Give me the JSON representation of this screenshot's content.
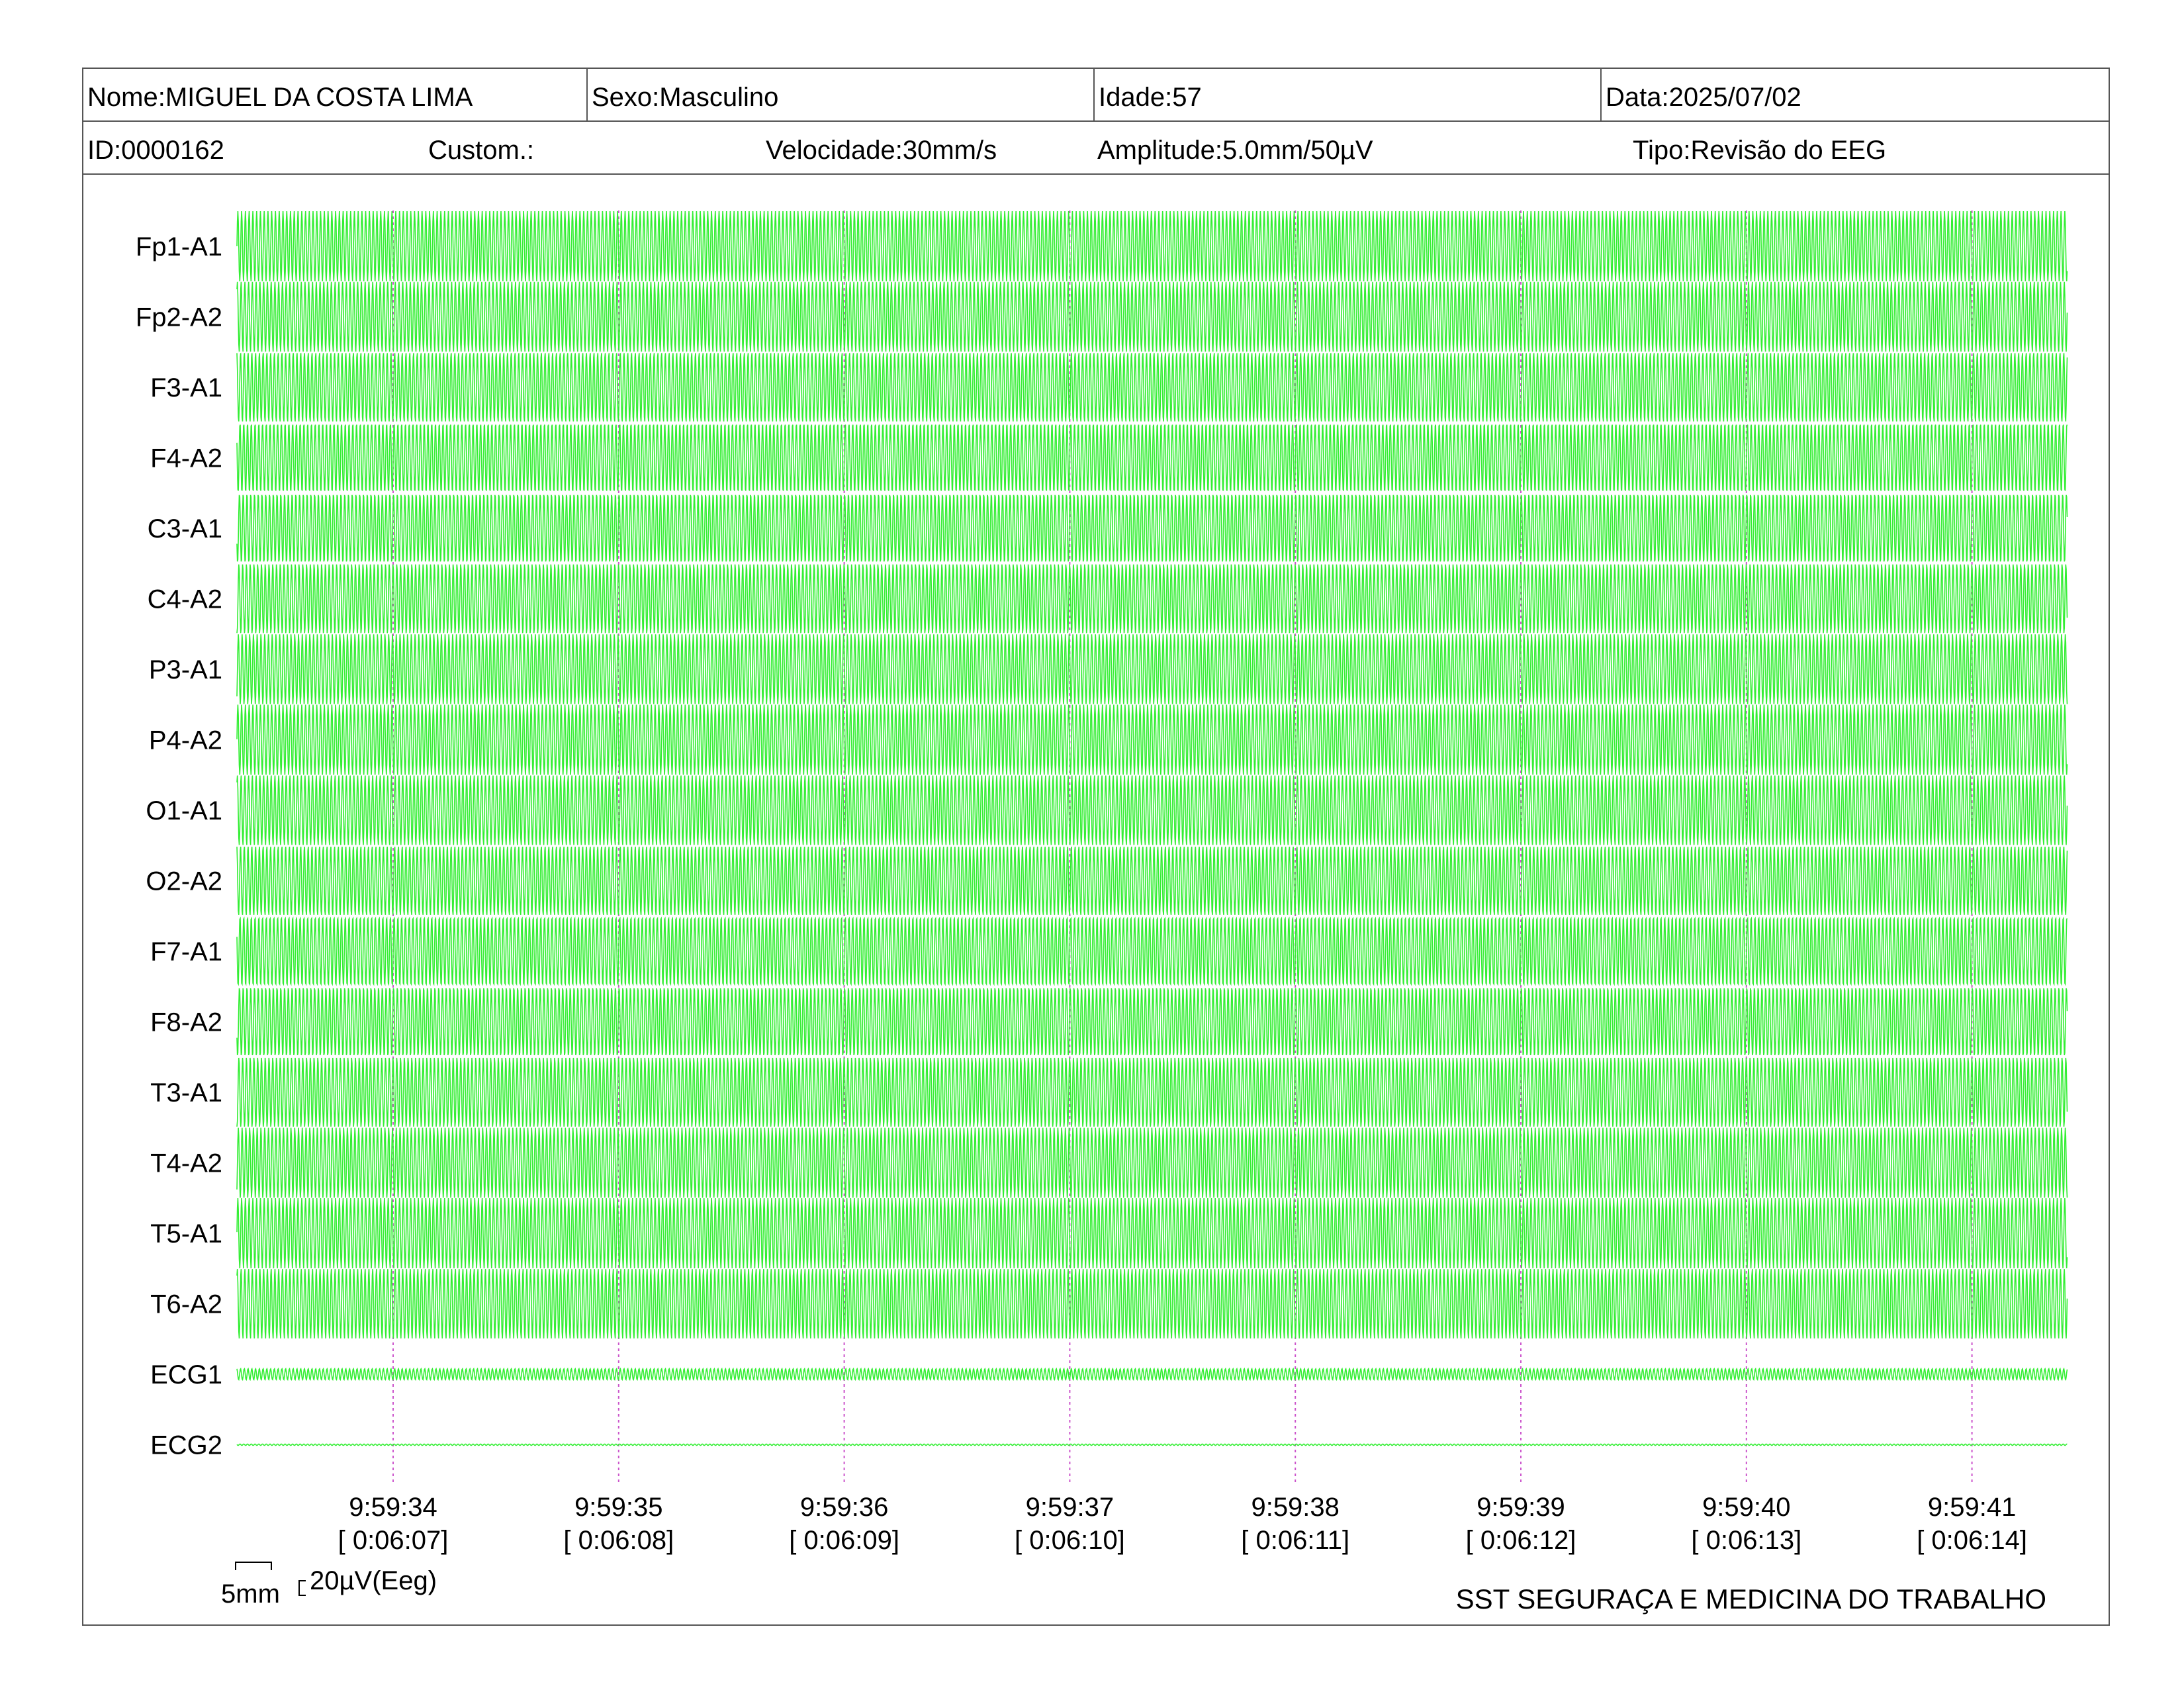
{
  "header": {
    "name": "Nome:MIGUEL DA COSTA LIMA",
    "sex": "Sexo:Masculino",
    "age": "Idade:57",
    "date": "Data:2025/07/02",
    "id": "ID:0000162",
    "custom": "Custom.:",
    "speed": "Velocidade:30mm/s",
    "amplitude": "Amplitude:5.0mm/50µV",
    "type": "Tipo:Revisão do EEG"
  },
  "scale": {
    "time_label": "5mm",
    "amp_label": "20µV(Eeg)"
  },
  "footer": {
    "organization": "SST SEGURAÇA E MEDICINA DO TRABALHO"
  },
  "colors": {
    "trace": "#33ee33",
    "marker": "#cc55cc",
    "border": "#555555"
  },
  "chart_data": {
    "type": "line",
    "title": "",
    "xlabel": "",
    "ylabel": "",
    "channels": [
      "Fp1-A1",
      "Fp2-A2",
      "F3-A1",
      "F4-A2",
      "C3-A1",
      "C4-A2",
      "P3-A1",
      "P4-A2",
      "O1-A1",
      "O2-A2",
      "F7-A1",
      "F8-A2",
      "T3-A1",
      "T4-A2",
      "T5-A1",
      "T6-A2",
      "ECG1",
      "ECG2"
    ],
    "time_ticks": [
      {
        "clock": "9:59:34",
        "elapsed": "[ 0:06:07]"
      },
      {
        "clock": "9:59:35",
        "elapsed": "[ 0:06:08]"
      },
      {
        "clock": "9:59:36",
        "elapsed": "[ 0:06:09]"
      },
      {
        "clock": "9:59:37",
        "elapsed": "[ 0:06:10]"
      },
      {
        "clock": "9:59:38",
        "elapsed": "[ 0:06:11]"
      },
      {
        "clock": "9:59:39",
        "elapsed": "[ 0:06:12]"
      },
      {
        "clock": "9:59:40",
        "elapsed": "[ 0:06:13]"
      },
      {
        "clock": "9:59:41",
        "elapsed": "[ 0:06:14]"
      }
    ],
    "x_range_seconds": [
      -0.7,
      7.4
    ],
    "eeg_waveform": {
      "frequency_hz": 60,
      "amplitude_uv": 50
    },
    "ecg1_waveform": {
      "frequency_hz": 60,
      "amplitude_uv": 8
    },
    "ecg2_waveform": {
      "frequency_hz": 60,
      "amplitude_uv": 1
    },
    "grid": false
  }
}
